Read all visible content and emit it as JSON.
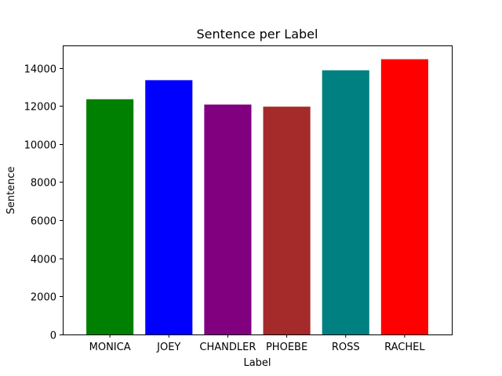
{
  "chart_data": {
    "type": "bar",
    "title": "Sentence per Label",
    "xlabel": "Label",
    "ylabel": "Sentence",
    "categories": [
      "MONICA",
      "JOEY",
      "CHANDLER",
      "PHOEBE",
      "ROSS",
      "RACHEL"
    ],
    "values": [
      12350,
      13350,
      12070,
      11960,
      13870,
      14450
    ],
    "colors": [
      "#008000",
      "#0000ff",
      "#800080",
      "#a52a2a",
      "#008080",
      "#ff0000"
    ],
    "ylim": [
      0,
      15174
    ],
    "yticks": [
      0,
      2000,
      4000,
      6000,
      8000,
      10000,
      12000,
      14000
    ],
    "ytick_labels": [
      "0",
      "2000",
      "4000",
      "6000",
      "8000",
      "10000",
      "12000",
      "14000"
    ],
    "grid": false,
    "legend": "none"
  }
}
